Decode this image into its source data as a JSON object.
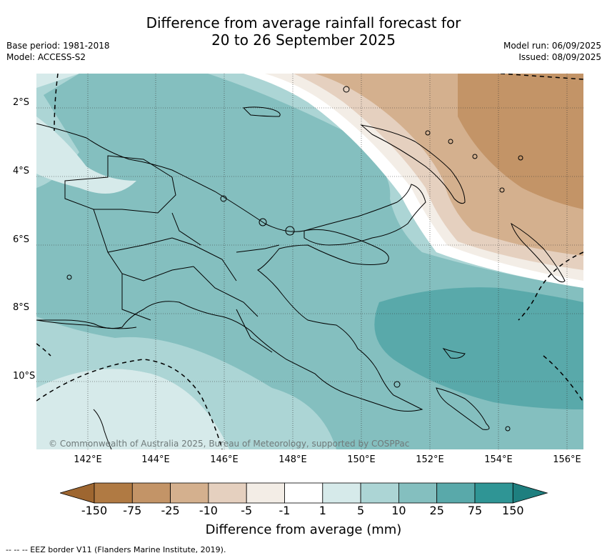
{
  "header": {
    "title_line1": "Difference from average rainfall forecast for",
    "title_line2": "20 to 26 September 2025",
    "base_period": "Base period: 1981-2018",
    "model": "Model: ACCESS-S2",
    "model_run": "Model run: 06/09/2025",
    "issued": "Issued: 08/09/2025"
  },
  "map": {
    "copyright": "© Commonwealth of Australia 2025, Bureau of Meteorology, supported by COSPPac",
    "lat_labels": [
      "2°S",
      "4°S",
      "6°S",
      "8°S",
      "10°S"
    ],
    "lon_labels": [
      "142°E",
      "144°E",
      "146°E",
      "148°E",
      "150°E",
      "152°E",
      "154°E",
      "156°E"
    ]
  },
  "legend": {
    "title": "Difference from average (mm)",
    "ticks": [
      "-150",
      "-75",
      "-25",
      "-10",
      "-5",
      "-1",
      "1",
      "5",
      "10",
      "25",
      "75",
      "150"
    ],
    "colors": [
      "#9e6630",
      "#b07a43",
      "#c39467",
      "#d4b08e",
      "#e5d0bf",
      "#f3ede6",
      "#ffffff",
      "#d6eaea",
      "#acd5d5",
      "#84bfbf",
      "#59a9aa",
      "#2f9595",
      "#1e7f7f"
    ]
  },
  "footer": {
    "eez_note": "--  --  -- EEZ border V11 (Flanders Marine Institute, 2019)."
  }
}
